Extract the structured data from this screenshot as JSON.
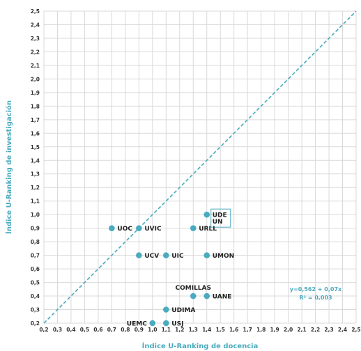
{
  "colors": {
    "accent": "#4aabbe",
    "grid": "#d9d9d9",
    "text": "#222222"
  },
  "chart_data": {
    "type": "scatter",
    "title": "",
    "xlabel": "Índice U-Ranking de docencia",
    "ylabel": "Índice U-Ranking de investigación",
    "xlim": [
      0.2,
      2.5
    ],
    "ylim": [
      0.2,
      2.5
    ],
    "xticks": [
      "0,2",
      "0,3",
      "0,4",
      "0,5",
      "0,6",
      "0,7",
      "0,8",
      "0,9",
      "1,0",
      "1,1",
      "1,2",
      "1,3",
      "1,4",
      "1,5",
      "1,6",
      "1,7",
      "1,8",
      "1,9",
      "2,0",
      "2,1",
      "2,2",
      "2,3",
      "2,4",
      "2,5"
    ],
    "yticks": [
      "0,2",
      "0,3",
      "0,4",
      "0,5",
      "0,6",
      "0,7",
      "0,8",
      "0,9",
      "1,0",
      "1,1",
      "1,2",
      "1,3",
      "1,4",
      "1,5",
      "1,6",
      "1,7",
      "1,8",
      "1,9",
      "2,0",
      "2,1",
      "2,2",
      "2,3",
      "2,4",
      "2,5"
    ],
    "grid": true,
    "reference_line": "diagonal y = x (dashed)",
    "points": [
      {
        "label": "UOC",
        "x": 0.7,
        "y": 0.9,
        "label_pos": "right"
      },
      {
        "label": "UVIC",
        "x": 0.9,
        "y": 0.9,
        "label_pos": "right"
      },
      {
        "label": "URLL",
        "x": 1.3,
        "y": 0.9,
        "label_pos": "right"
      },
      {
        "label": "UDE",
        "x": 1.4,
        "y": 1.0,
        "label_pos": "right"
      },
      {
        "label": "UN",
        "x": 1.4,
        "y": 1.0,
        "label_pos": "below-right"
      },
      {
        "label": "UCV",
        "x": 0.9,
        "y": 0.7,
        "label_pos": "right"
      },
      {
        "label": "UIC",
        "x": 1.1,
        "y": 0.7,
        "label_pos": "right"
      },
      {
        "label": "UMON",
        "x": 1.4,
        "y": 0.7,
        "label_pos": "right"
      },
      {
        "label": "COMILLAS",
        "x": 1.3,
        "y": 0.4,
        "label_pos": "above"
      },
      {
        "label": "UANE",
        "x": 1.4,
        "y": 0.4,
        "label_pos": "right"
      },
      {
        "label": "UDIMA",
        "x": 1.1,
        "y": 0.3,
        "label_pos": "right"
      },
      {
        "label": "UEMC",
        "x": 1.0,
        "y": 0.2,
        "label_pos": "left"
      },
      {
        "label": "USJ",
        "x": 1.1,
        "y": 0.2,
        "label_pos": "right"
      }
    ],
    "annotations": {
      "equation": "y=0,562 + 0,07x",
      "r_squared": "R² = 0,003"
    }
  }
}
